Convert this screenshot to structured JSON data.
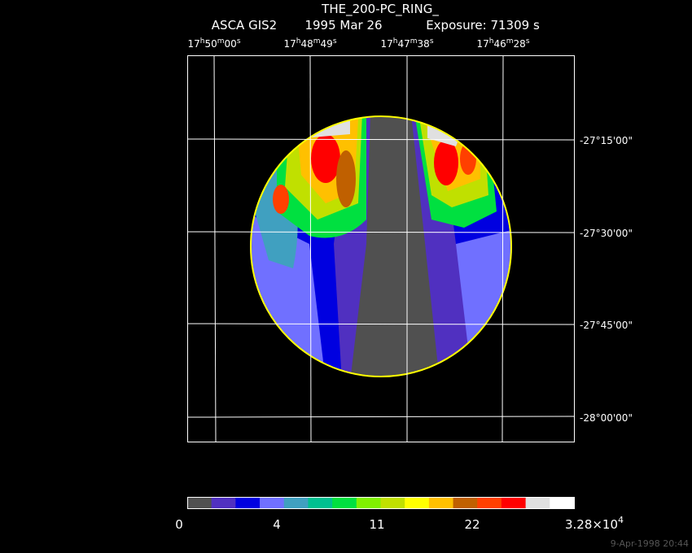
{
  "header": {
    "title": "THE_200-PC_RING_",
    "instrument": "ASCA GIS2",
    "date": "1995 Mar 26",
    "exposure": "Exposure: 71309 s"
  },
  "ra_labels": [
    [
      "17",
      "h",
      "50",
      "m",
      "00",
      "s"
    ],
    [
      "17",
      "h",
      "48",
      "m",
      "49",
      "s"
    ],
    [
      "17",
      "h",
      "47",
      "m",
      "38",
      "s"
    ],
    [
      "17",
      "h",
      "46",
      "m",
      "28",
      "s"
    ]
  ],
  "dec_labels": [
    "-27°15'00\"",
    "-27°30'00\"",
    "-27°45'00\"",
    "-28°00'00\""
  ],
  "colorbar": {
    "colors": [
      "#505050",
      "#5030c0",
      "#0000e0",
      "#7070ff",
      "#40a0c0",
      "#00c090",
      "#00e040",
      "#80f000",
      "#c0e000",
      "#ffff00",
      "#ffc000",
      "#c06000",
      "#ff4000",
      "#ff0000",
      "#e0e0e0",
      "#ffffff"
    ],
    "labels": [
      "0",
      "4",
      "11",
      "22",
      [
        "3.28×10",
        "4"
      ]
    ]
  },
  "footer": "9-Apr-1998 20:44"
}
